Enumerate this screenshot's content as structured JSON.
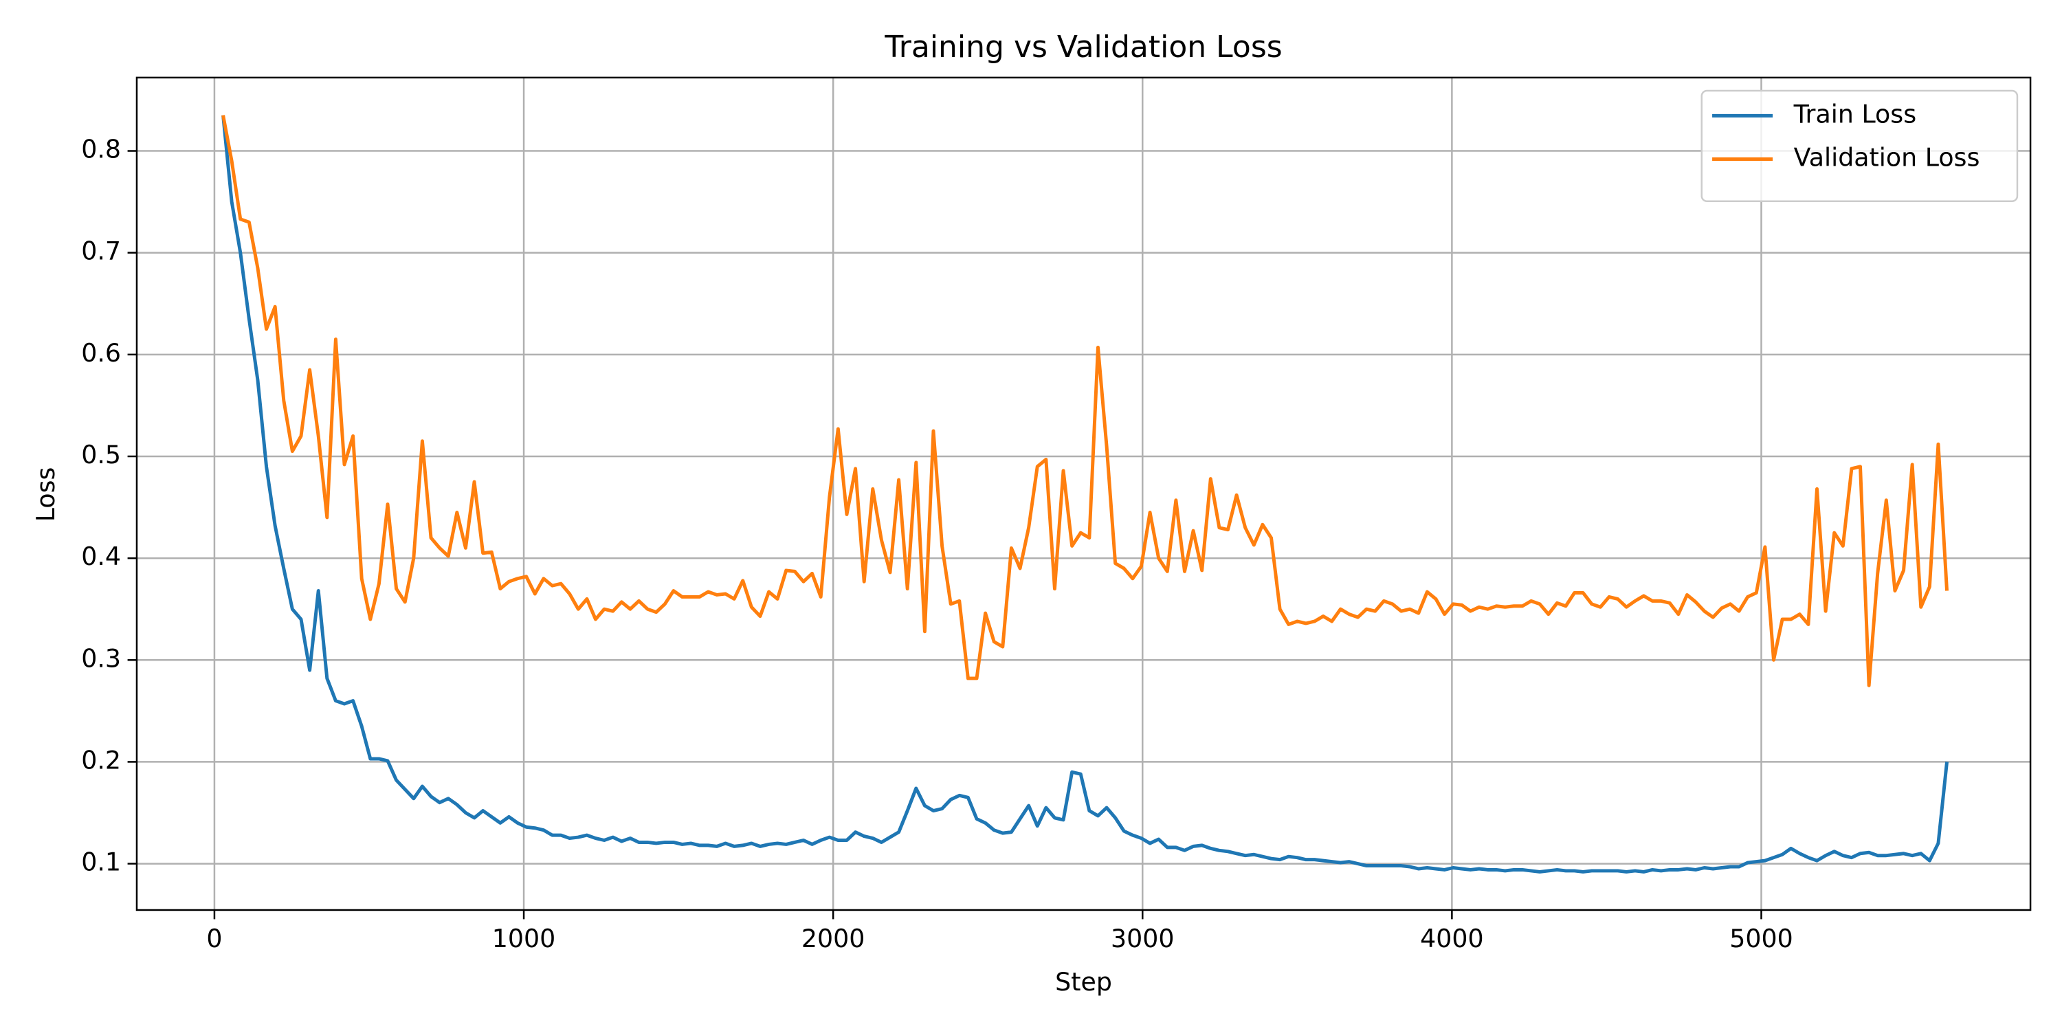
{
  "chart_data": {
    "type": "line",
    "title": "Training vs Validation Loss",
    "xlabel": "Step",
    "ylabel": "Loss",
    "x": [
      28,
      56,
      84,
      112,
      140,
      168,
      196,
      224,
      252,
      280,
      308,
      336,
      364,
      392,
      420,
      448,
      476,
      504,
      532,
      560,
      588,
      616,
      644,
      672,
      700,
      728,
      756,
      784,
      812,
      840,
      868,
      896,
      924,
      952,
      980,
      1008,
      1036,
      1064,
      1092,
      1120,
      1148,
      1176,
      1204,
      1232,
      1260,
      1288,
      1316,
      1344,
      1372,
      1400,
      1428,
      1456,
      1484,
      1512,
      1540,
      1568,
      1596,
      1624,
      1652,
      1680,
      1708,
      1736,
      1764,
      1792,
      1820,
      1848,
      1876,
      1904,
      1932,
      1960,
      1988,
      2016,
      2044,
      2072,
      2100,
      2128,
      2156,
      2184,
      2212,
      2240,
      2268,
      2296,
      2324,
      2352,
      2380,
      2408,
      2436,
      2464,
      2492,
      2520,
      2548,
      2576,
      2604,
      2632,
      2660,
      2688,
      2716,
      2744,
      2772,
      2800,
      2828,
      2856,
      2884,
      2912,
      2940,
      2968,
      2996,
      3024,
      3052,
      3080,
      3108,
      3136,
      3164,
      3192,
      3220,
      3248,
      3276,
      3304,
      3332,
      3360,
      3388,
      3416,
      3444,
      3472,
      3500,
      3528,
      3556,
      3584,
      3612,
      3640,
      3668,
      3696,
      3724,
      3752,
      3780,
      3808,
      3836,
      3864,
      3892,
      3920,
      3948,
      3976,
      4004,
      4032,
      4060,
      4088,
      4116,
      4144,
      4172,
      4200,
      4228,
      4256,
      4284,
      4312,
      4340,
      4368,
      4396,
      4424,
      4452,
      4480,
      4508,
      4536,
      4564,
      4592,
      4620,
      4648,
      4676,
      4704,
      4732,
      4760,
      4788,
      4816,
      4844,
      4872,
      4900,
      4928,
      4956,
      4984,
      5012,
      5040,
      5068,
      5096,
      5124,
      5152,
      5180,
      5208,
      5236,
      5264,
      5292,
      5320,
      5348,
      5376,
      5404,
      5432,
      5460,
      5488,
      5516,
      5544,
      5572,
      5600
    ],
    "series": [
      {
        "name": "Train Loss",
        "color": "#1f77b4",
        "values": [
          0.835,
          0.75,
          0.7,
          0.635,
          0.575,
          0.49,
          0.432,
          0.39,
          0.35,
          0.34,
          0.29,
          0.368,
          0.282,
          0.26,
          0.257,
          0.26,
          0.235,
          0.203,
          0.203,
          0.201,
          0.182,
          0.173,
          0.164,
          0.176,
          0.166,
          0.16,
          0.164,
          0.158,
          0.15,
          0.145,
          0.152,
          0.146,
          0.14,
          0.146,
          0.14,
          0.136,
          0.135,
          0.133,
          0.128,
          0.128,
          0.125,
          0.126,
          0.128,
          0.125,
          0.123,
          0.126,
          0.122,
          0.125,
          0.121,
          0.121,
          0.12,
          0.121,
          0.121,
          0.119,
          0.12,
          0.118,
          0.118,
          0.117,
          0.12,
          0.117,
          0.118,
          0.12,
          0.117,
          0.119,
          0.12,
          0.119,
          0.121,
          0.123,
          0.119,
          0.123,
          0.126,
          0.123,
          0.123,
          0.131,
          0.127,
          0.125,
          0.121,
          0.126,
          0.131,
          0.152,
          0.174,
          0.157,
          0.152,
          0.154,
          0.163,
          0.167,
          0.165,
          0.144,
          0.14,
          0.133,
          0.13,
          0.131,
          0.144,
          0.157,
          0.137,
          0.155,
          0.145,
          0.143,
          0.19,
          0.188,
          0.152,
          0.147,
          0.155,
          0.145,
          0.132,
          0.128,
          0.125,
          0.12,
          0.124,
          0.116,
          0.116,
          0.113,
          0.117,
          0.118,
          0.115,
          0.113,
          0.112,
          0.11,
          0.108,
          0.109,
          0.107,
          0.105,
          0.104,
          0.107,
          0.106,
          0.104,
          0.104,
          0.103,
          0.102,
          0.101,
          0.102,
          0.1,
          0.098,
          0.098,
          0.098,
          0.098,
          0.098,
          0.097,
          0.095,
          0.096,
          0.095,
          0.094,
          0.096,
          0.095,
          0.094,
          0.095,
          0.094,
          0.094,
          0.093,
          0.094,
          0.094,
          0.093,
          0.092,
          0.093,
          0.094,
          0.093,
          0.093,
          0.092,
          0.093,
          0.093,
          0.093,
          0.093,
          0.092,
          0.093,
          0.092,
          0.094,
          0.093,
          0.094,
          0.094,
          0.095,
          0.094,
          0.096,
          0.095,
          0.096,
          0.097,
          0.097,
          0.101,
          0.102,
          0.103,
          0.106,
          0.109,
          0.115,
          0.11,
          0.106,
          0.103,
          0.108,
          0.112,
          0.108,
          0.106,
          0.11,
          0.111,
          0.108,
          0.108,
          0.109,
          0.11,
          0.108,
          0.11,
          0.103,
          0.12,
          0.2
        ]
      },
      {
        "name": "Validation Loss",
        "color": "#ff7f0e",
        "values": [
          0.835,
          0.79,
          0.733,
          0.73,
          0.685,
          0.625,
          0.647,
          0.555,
          0.505,
          0.52,
          0.585,
          0.52,
          0.44,
          0.615,
          0.492,
          0.52,
          0.38,
          0.34,
          0.375,
          0.453,
          0.37,
          0.357,
          0.4,
          0.515,
          0.42,
          0.41,
          0.402,
          0.445,
          0.41,
          0.475,
          0.405,
          0.406,
          0.37,
          0.377,
          0.38,
          0.382,
          0.365,
          0.38,
          0.373,
          0.375,
          0.365,
          0.35,
          0.36,
          0.34,
          0.35,
          0.348,
          0.357,
          0.35,
          0.358,
          0.35,
          0.347,
          0.355,
          0.368,
          0.362,
          0.362,
          0.362,
          0.367,
          0.364,
          0.365,
          0.36,
          0.378,
          0.352,
          0.343,
          0.367,
          0.36,
          0.388,
          0.387,
          0.377,
          0.385,
          0.362,
          0.46,
          0.527,
          0.443,
          0.488,
          0.377,
          0.468,
          0.418,
          0.386,
          0.477,
          0.37,
          0.494,
          0.328,
          0.525,
          0.412,
          0.355,
          0.358,
          0.282,
          0.282,
          0.346,
          0.318,
          0.313,
          0.41,
          0.39,
          0.43,
          0.49,
          0.497,
          0.37,
          0.486,
          0.412,
          0.425,
          0.42,
          0.607,
          0.51,
          0.395,
          0.39,
          0.38,
          0.392,
          0.445,
          0.4,
          0.387,
          0.457,
          0.387,
          0.427,
          0.388,
          0.478,
          0.43,
          0.428,
          0.462,
          0.43,
          0.413,
          0.433,
          0.42,
          0.35,
          0.335,
          0.338,
          0.336,
          0.338,
          0.343,
          0.338,
          0.35,
          0.345,
          0.342,
          0.35,
          0.348,
          0.358,
          0.355,
          0.348,
          0.35,
          0.346,
          0.367,
          0.36,
          0.345,
          0.355,
          0.354,
          0.348,
          0.352,
          0.35,
          0.353,
          0.352,
          0.353,
          0.353,
          0.358,
          0.355,
          0.345,
          0.356,
          0.353,
          0.366,
          0.366,
          0.355,
          0.352,
          0.362,
          0.36,
          0.352,
          0.358,
          0.363,
          0.358,
          0.358,
          0.356,
          0.345,
          0.364,
          0.357,
          0.348,
          0.342,
          0.351,
          0.355,
          0.348,
          0.362,
          0.366,
          0.411,
          0.3,
          0.34,
          0.34,
          0.345,
          0.335,
          0.468,
          0.348,
          0.425,
          0.412,
          0.488,
          0.49,
          0.275,
          0.385,
          0.457,
          0.368,
          0.388,
          0.492,
          0.352,
          0.372,
          0.512,
          0.368
        ]
      }
    ],
    "xlim": [
      -251,
      5870
    ],
    "ylim": [
      0.0545,
      0.872
    ],
    "xticks": [
      0,
      1000,
      2000,
      3000,
      4000,
      5000
    ],
    "yticks": [
      0.1,
      0.2,
      0.3,
      0.4,
      0.5,
      0.6,
      0.7,
      0.8
    ],
    "grid": true,
    "legend": "upper right"
  }
}
